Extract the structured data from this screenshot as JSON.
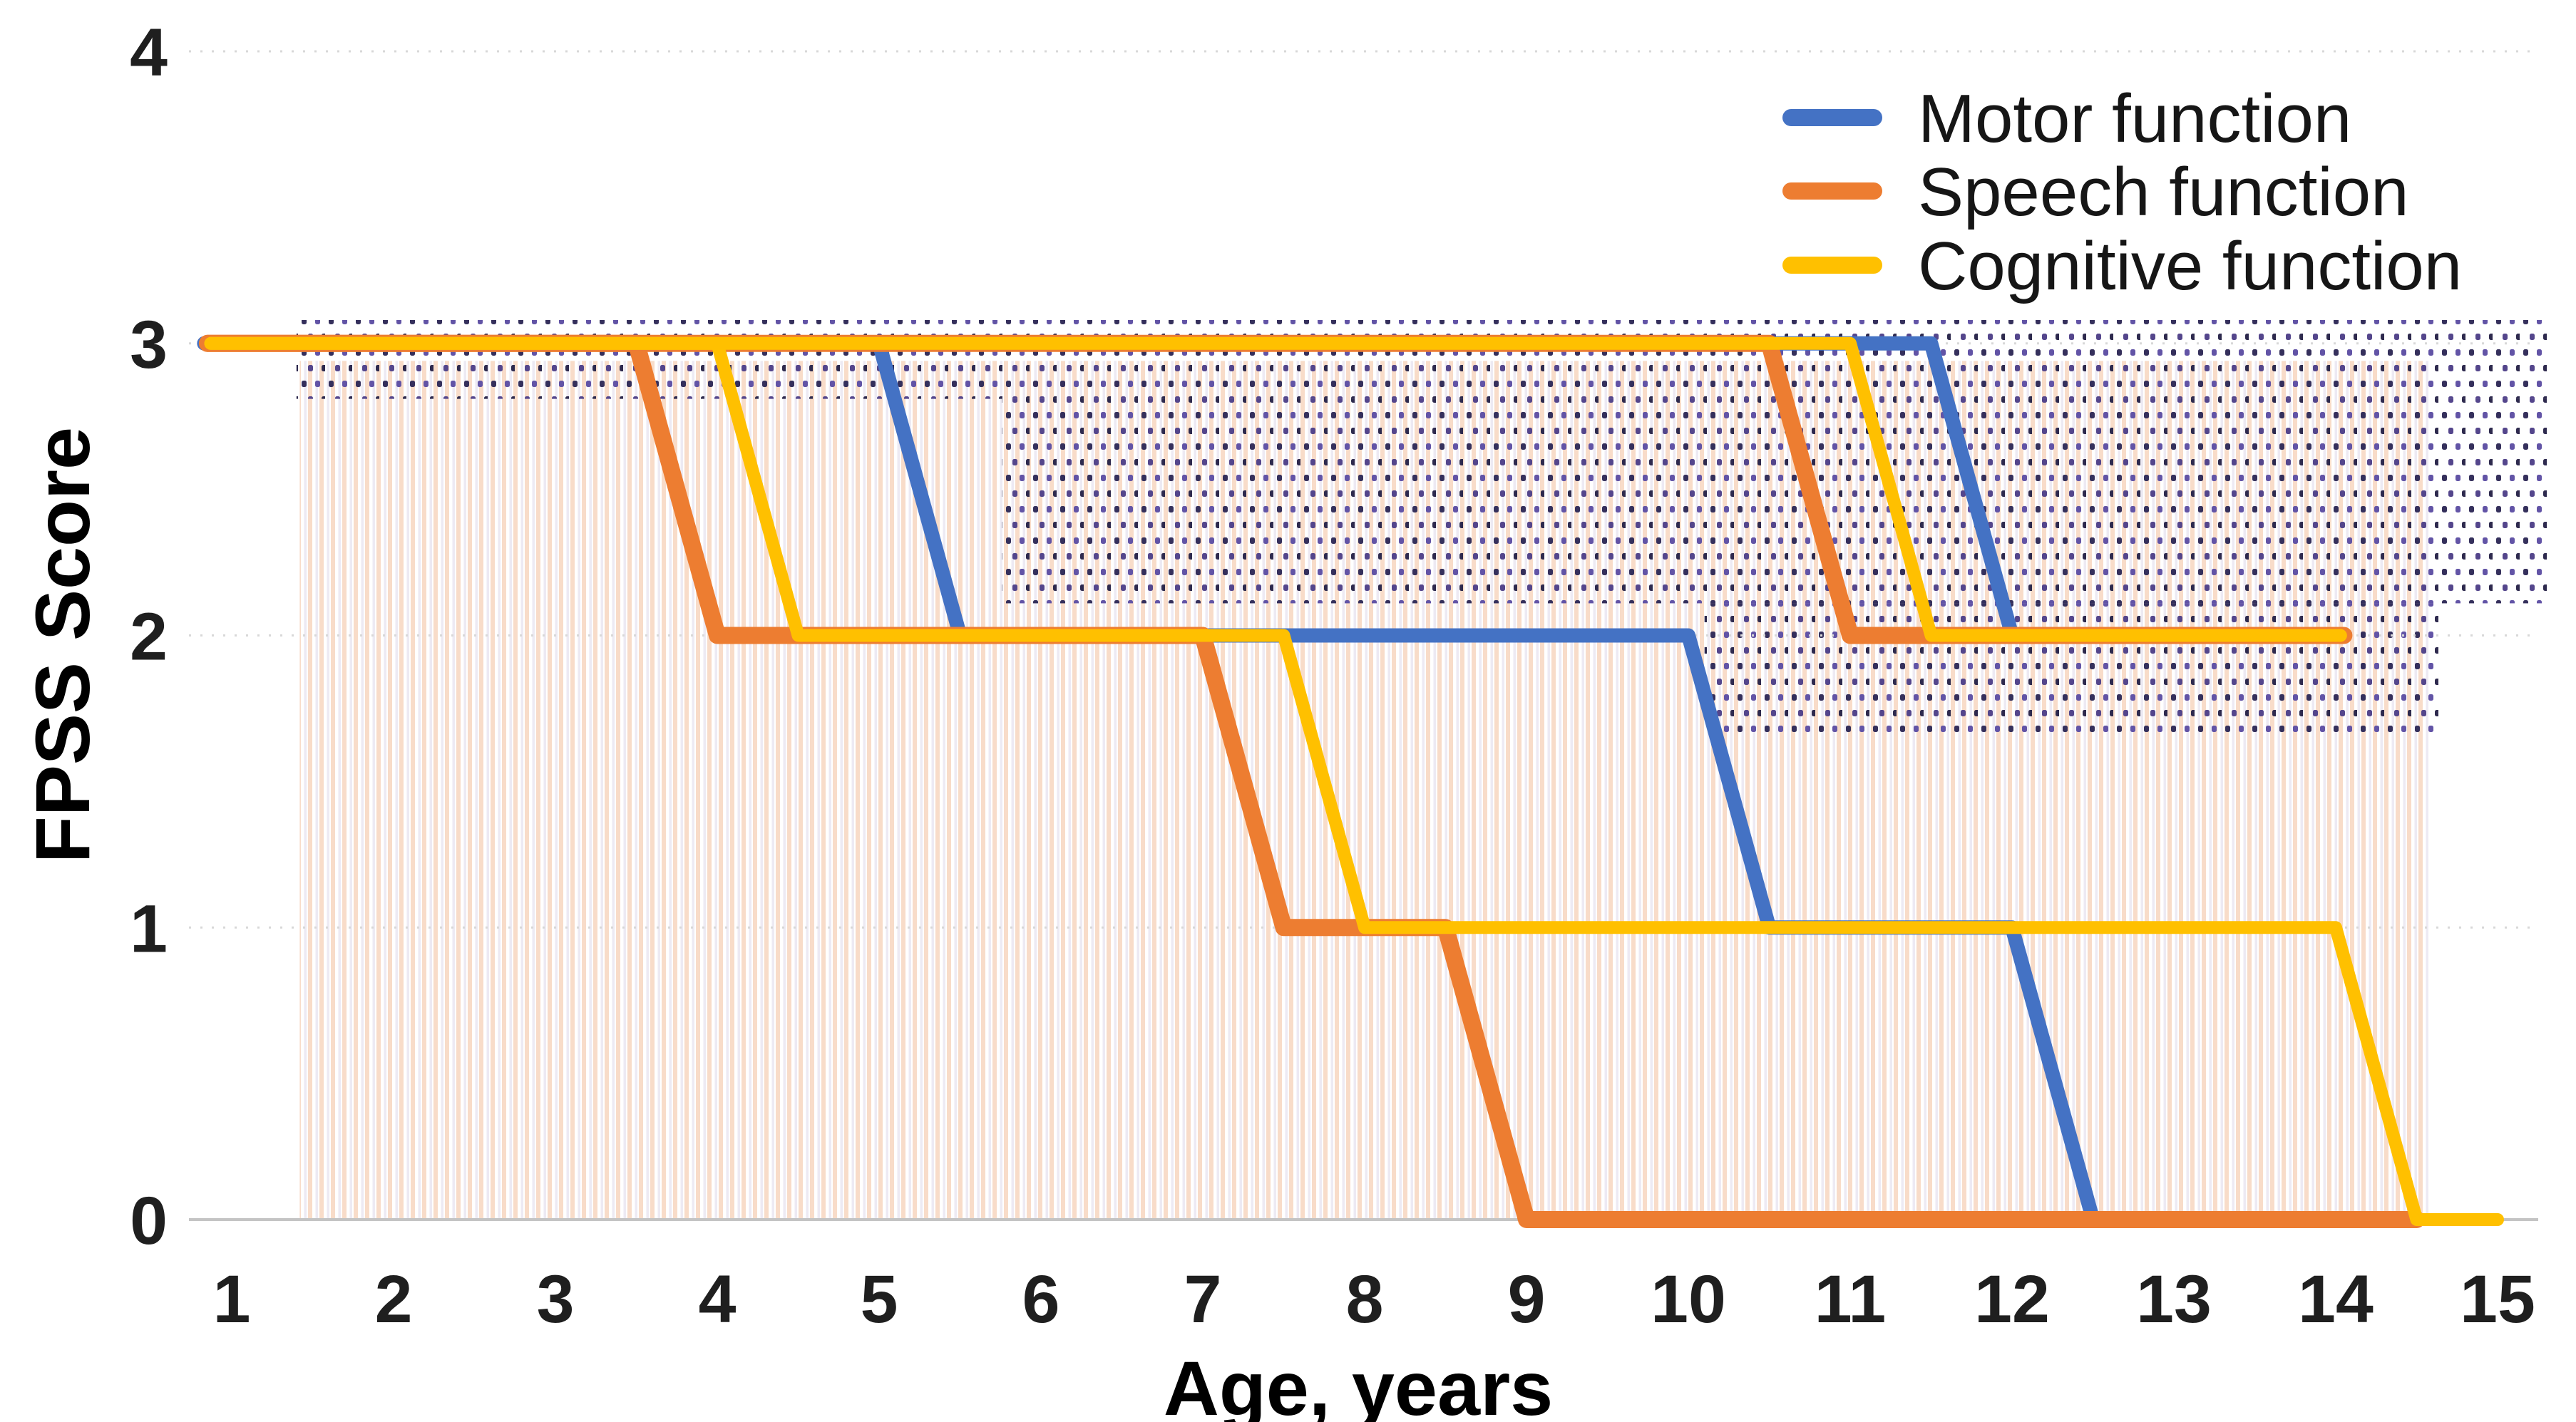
{
  "chart_data": {
    "type": "line",
    "title": "",
    "xlabel": "Age, years",
    "ylabel": "FPSS Score",
    "x_ticks": [
      1,
      2,
      3,
      4,
      5,
      6,
      7,
      8,
      9,
      10,
      11,
      12,
      13,
      14,
      15
    ],
    "y_ticks": [
      0,
      1,
      2,
      3,
      4
    ],
    "xlim": [
      0.7,
      15.45
    ],
    "ylim": [
      0,
      4
    ],
    "grid": "horizontal-dotted",
    "legend_position": "top-right",
    "legend": [
      {
        "label": "Motor function",
        "color": "#4472C4"
      },
      {
        "label": "Speech function",
        "color": "#ED7D31"
      },
      {
        "label": "Cognitive function",
        "color": "#FFC000"
      }
    ],
    "colors": {
      "motor": "#4472C4",
      "speech": "#ED7D31",
      "cognitive": "#FFC000",
      "gridline": "#d8d8d8",
      "axis_line": "#c4c4c4",
      "stipple_dot_navy": "#35305c",
      "stipple_dot_purple": "#6254a6",
      "stripe_pale_orange": "#f8dcc9",
      "stripe_pale_lavender": "#edeaf3"
    },
    "series": [
      {
        "name": "Motor function",
        "patient": 1,
        "color": "#4472C4",
        "points": [
          [
            0.83,
            3
          ],
          [
            5,
            3
          ],
          [
            5.5,
            2
          ],
          [
            10,
            2
          ],
          [
            10.5,
            1
          ],
          [
            12,
            1
          ],
          [
            12.5,
            0
          ]
        ]
      },
      {
        "name": "Motor function",
        "patient": 2,
        "color": "#4472C4",
        "points": [
          [
            0.83,
            3
          ],
          [
            11.5,
            3
          ],
          [
            12,
            2
          ],
          [
            14.05,
            2
          ]
        ]
      },
      {
        "name": "Speech function",
        "patient": 2,
        "color": "#ED7D31",
        "points": [
          [
            0.85,
            3
          ],
          [
            10.5,
            3
          ],
          [
            11,
            2
          ],
          [
            14.05,
            2
          ]
        ]
      },
      {
        "name": "Speech function",
        "patient": 1,
        "color": "#ED7D31",
        "points": [
          [
            0.85,
            3
          ],
          [
            3.5,
            3
          ],
          [
            4,
            2
          ],
          [
            7,
            2
          ],
          [
            7.5,
            1
          ],
          [
            8.5,
            1
          ],
          [
            9,
            0
          ],
          [
            14.5,
            0
          ]
        ]
      },
      {
        "name": "Cognitive function",
        "patient": 2,
        "color": "#FFC000",
        "points": [
          [
            0.87,
            3
          ],
          [
            11,
            3
          ],
          [
            11.5,
            2
          ],
          [
            14.03,
            2
          ]
        ]
      },
      {
        "name": "Cognitive function",
        "patient": 1,
        "color": "#FFC000",
        "points": [
          [
            0.87,
            3
          ],
          [
            4,
            3
          ],
          [
            4.5,
            2
          ],
          [
            7.5,
            2
          ],
          [
            8,
            1
          ],
          [
            14,
            1
          ],
          [
            14.5,
            0
          ],
          [
            15,
            0
          ]
        ]
      }
    ],
    "pattern_regions": {
      "striped_region": {
        "x1": 1.42,
        "x2": 14.58,
        "y1": 0.0,
        "y2": 2.94
      },
      "dotted_regions": [
        {
          "x1": 1.4,
          "x2": 15.31,
          "y1": 2.81,
          "y2": 3.08
        },
        {
          "x1": 5.76,
          "x2": 15.31,
          "y1": 2.11,
          "y2": 2.81
        },
        {
          "x1": 10.1,
          "x2": 14.65,
          "y1": 1.64,
          "y2": 2.11
        }
      ]
    }
  }
}
